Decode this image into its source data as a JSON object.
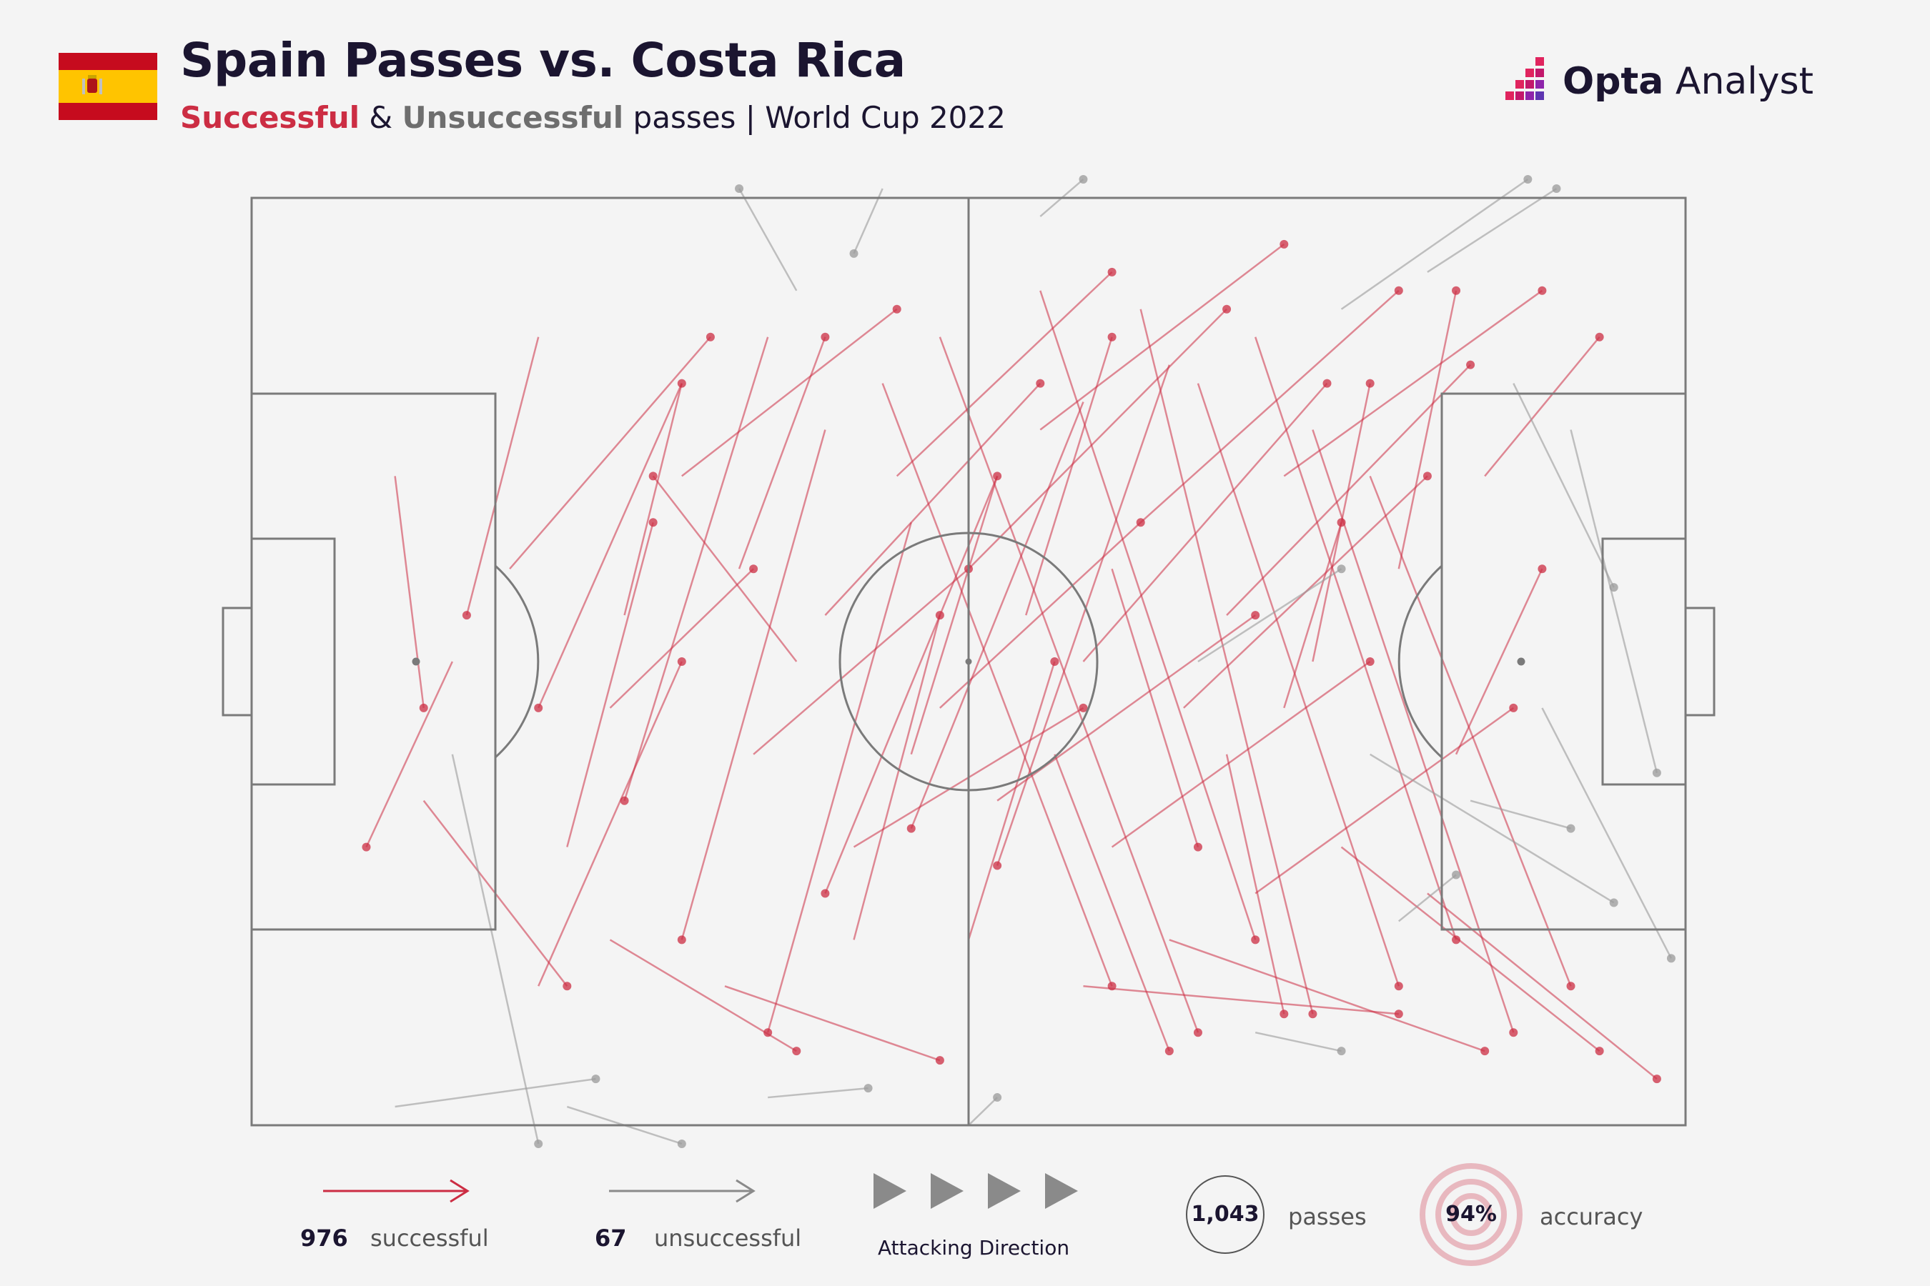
{
  "header": {
    "title": "Spain Passes vs. Costa Rica",
    "subtitle_successful": "Successful",
    "subtitle_amp": " & ",
    "subtitle_unsuccessful": "Unsuccessful",
    "subtitle_rest": " passes | World Cup 2022"
  },
  "brand": {
    "name_bold": "Opta",
    "name_rest": " Analyst"
  },
  "colors": {
    "successful": "#cc2d43",
    "unsuccessful": "#9a9a9a",
    "pitch_lines": "#7a7a7a",
    "background": "#f4f4f4",
    "flag_red": "#c60b1e",
    "flag_yellow": "#ffc400"
  },
  "legend": {
    "successful_count": "976",
    "successful_label": "successful",
    "unsuccessful_count": "67",
    "unsuccessful_label": "unsuccessful",
    "direction_label": "Attacking Direction",
    "total_passes": "1,043",
    "total_label": "passes",
    "accuracy": "94%",
    "accuracy_label": "accuracy"
  },
  "chart_data": {
    "type": "scatter",
    "title": "Spain Passes vs. Costa Rica",
    "subtitle": "Successful & Unsuccessful passes | World Cup 2022",
    "coordinate_system": "pitch x 0-100 (left to right, attacking right), y 0-100 (top to bottom)",
    "total_passes": 1043,
    "successful": 976,
    "unsuccessful": 67,
    "accuracy_pct": 94,
    "note": "Only an illustrative subset of passes transcribed as arrows; start [x,y] -> end [x,y]",
    "series": [
      {
        "name": "successful",
        "passes": [
          [
            20,
            85,
            30,
            50
          ],
          [
            22,
            70,
            28,
            35
          ],
          [
            25,
            55,
            35,
            40
          ],
          [
            18,
            40,
            32,
            15
          ],
          [
            30,
            30,
            45,
            12
          ],
          [
            35,
            60,
            50,
            40
          ],
          [
            40,
            45,
            55,
            20
          ],
          [
            42,
            70,
            58,
            55
          ],
          [
            45,
            30,
            60,
            8
          ],
          [
            48,
            55,
            62,
            35
          ],
          [
            50,
            40,
            68,
            12
          ],
          [
            52,
            65,
            70,
            45
          ],
          [
            55,
            25,
            72,
            5
          ],
          [
            58,
            50,
            75,
            20
          ],
          [
            60,
            70,
            78,
            50
          ],
          [
            62,
            35,
            80,
            10
          ],
          [
            65,
            55,
            82,
            30
          ],
          [
            68,
            45,
            85,
            18
          ],
          [
            70,
            75,
            88,
            55
          ],
          [
            72,
            30,
            90,
            10
          ],
          [
            44,
            20,
            60,
            85
          ],
          [
            48,
            15,
            66,
            90
          ],
          [
            55,
            10,
            70,
            80
          ],
          [
            62,
            12,
            74,
            88
          ],
          [
            66,
            20,
            80,
            85
          ],
          [
            70,
            15,
            84,
            80
          ],
          [
            74,
            25,
            88,
            90
          ],
          [
            78,
            30,
            92,
            85
          ],
          [
            52,
            30,
            40,
            75
          ],
          [
            58,
            22,
            46,
            68
          ],
          [
            64,
            18,
            52,
            72
          ],
          [
            30,
            20,
            20,
            55
          ],
          [
            36,
            15,
            26,
            65
          ],
          [
            40,
            25,
            30,
            80
          ],
          [
            46,
            35,
            36,
            90
          ],
          [
            14,
            50,
            8,
            70
          ],
          [
            10,
            30,
            12,
            55
          ],
          [
            25,
            80,
            38,
            92
          ],
          [
            33,
            85,
            48,
            93
          ],
          [
            12,
            65,
            22,
            85
          ],
          [
            20,
            15,
            15,
            45
          ],
          [
            38,
            50,
            28,
            30
          ],
          [
            56,
            60,
            64,
            92
          ],
          [
            60,
            40,
            66,
            70
          ],
          [
            68,
            60,
            72,
            88
          ],
          [
            74,
            50,
            78,
            20
          ],
          [
            80,
            40,
            84,
            10
          ],
          [
            84,
            60,
            90,
            40
          ],
          [
            86,
            30,
            94,
            15
          ],
          [
            76,
            70,
            94,
            92
          ],
          [
            82,
            75,
            98,
            95
          ],
          [
            64,
            80,
            86,
            92
          ],
          [
            58,
            85,
            80,
            88
          ],
          [
            46,
            60,
            52,
            30
          ],
          [
            42,
            80,
            48,
            45
          ],
          [
            34,
            40,
            40,
            15
          ],
          [
            26,
            45,
            30,
            20
          ],
          [
            50,
            80,
            56,
            50
          ],
          [
            54,
            45,
            60,
            15
          ],
          [
            72,
            55,
            76,
            35
          ]
        ]
      },
      {
        "name": "unsuccessful",
        "passes": [
          [
            55,
            2,
            58,
            -2
          ],
          [
            38,
            10,
            34,
            -1
          ],
          [
            44,
            -1,
            42,
            6
          ],
          [
            76,
            12,
            89,
            -2
          ],
          [
            82,
            8,
            91,
            -1
          ],
          [
            88,
            20,
            95,
            42
          ],
          [
            92,
            25,
            98,
            62
          ],
          [
            90,
            55,
            99,
            82
          ],
          [
            78,
            60,
            95,
            76
          ],
          [
            66,
            50,
            76,
            40
          ],
          [
            14,
            60,
            20,
            102
          ],
          [
            22,
            98,
            30,
            102
          ],
          [
            50,
            100,
            52,
            97
          ],
          [
            36,
            97,
            43,
            96
          ],
          [
            85,
            65,
            92,
            68
          ],
          [
            70,
            90,
            76,
            92
          ],
          [
            10,
            98,
            24,
            95
          ],
          [
            80,
            78,
            84,
            73
          ]
        ]
      }
    ]
  }
}
